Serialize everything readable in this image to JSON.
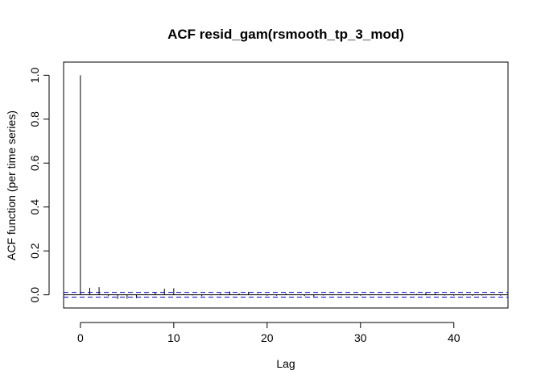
{
  "chart_data": {
    "type": "bar",
    "subtype": "acf",
    "title": "ACF resid_gam(rsmooth_tp_3_mod)",
    "xlabel": "Lag",
    "ylabel": "ACF function (per time series)",
    "xlim": [
      -1.8,
      45.8
    ],
    "ylim": [
      -0.06,
      1.06
    ],
    "xticks": [
      0,
      10,
      20,
      30,
      40
    ],
    "yticks": [
      0.0,
      0.2,
      0.4,
      0.6,
      0.8,
      1.0
    ],
    "ytick_labels": [
      "0.0",
      "0.2",
      "0.4",
      "0.6",
      "0.8",
      "1.0"
    ],
    "zero_line": true,
    "confidence_band": 0.011,
    "band_color": "#0000cc",
    "grid": false,
    "x": [
      0,
      1,
      2,
      3,
      4,
      5,
      6,
      7,
      8,
      9,
      10,
      11,
      12,
      13,
      14,
      15,
      16,
      17,
      18,
      19,
      20,
      21,
      22,
      23,
      24,
      25,
      26,
      27,
      28,
      29,
      30,
      31,
      32,
      33,
      34,
      35,
      36,
      37,
      38,
      39,
      40,
      41,
      42,
      43,
      44,
      45
    ],
    "values": [
      1.0,
      0.032,
      0.035,
      -0.006,
      -0.019,
      -0.018,
      -0.015,
      0.004,
      0.012,
      0.028,
      0.03,
      0.003,
      -0.003,
      -0.006,
      -0.002,
      0.006,
      0.015,
      0.006,
      0.013,
      0.004,
      -0.004,
      -0.004,
      0.006,
      0.002,
      -0.006,
      -0.008,
      -0.003,
      -0.002,
      -0.002,
      0.002,
      -0.004,
      -0.002,
      0.002,
      -0.002,
      0.002,
      0.003,
      0.004,
      0.012,
      0.007,
      -0.003,
      -0.004,
      -0.003,
      -0.004,
      -0.003,
      0.002,
      -0.004
    ]
  }
}
